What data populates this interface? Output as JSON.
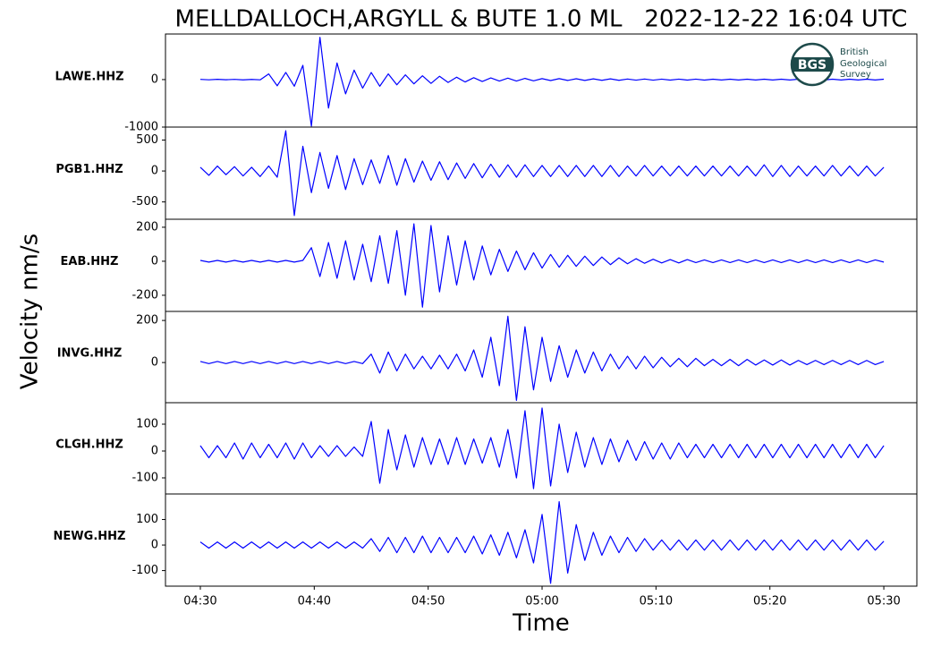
{
  "chart_data": {
    "type": "line",
    "title": "MELLDALLOCH,ARGYLL & BUTE 1.0 ML   2022-12-22 16:04 UTC",
    "y_label": "Velocity nm/s",
    "x_label": "Time",
    "logo": {
      "abbr": "BGS",
      "lines": [
        "British",
        "Geological",
        "Survey"
      ]
    },
    "xlim": [
      266.94,
      332.9
    ],
    "xticks": [
      {
        "value": 270,
        "label": "04:30"
      },
      {
        "value": 280,
        "label": "04:40"
      },
      {
        "value": 290,
        "label": "04:50"
      },
      {
        "value": 300,
        "label": "05:00"
      },
      {
        "value": 310,
        "label": "05:10"
      },
      {
        "value": 320,
        "label": "05:20"
      },
      {
        "value": 330,
        "label": "05:30"
      }
    ],
    "x": [
      270,
      270.75,
      271.5,
      272.25,
      273,
      273.75,
      274.5,
      275.25,
      276,
      276.75,
      277.5,
      278.25,
      279,
      279.75,
      280.5,
      281.25,
      282,
      282.75,
      283.5,
      284.25,
      285,
      285.75,
      286.5,
      287.25,
      288,
      288.75,
      289.5,
      290.25,
      291,
      291.75,
      292.5,
      293.25,
      294,
      294.75,
      295.5,
      296.25,
      297,
      297.75,
      298.5,
      299.25,
      300,
      300.75,
      301.5,
      302.25,
      303,
      303.75,
      304.5,
      305.25,
      306,
      306.75,
      307.5,
      308.25,
      309,
      309.75,
      310.5,
      311.25,
      312,
      312.75,
      313.5,
      314.25,
      315,
      315.75,
      316.5,
      317.25,
      318,
      318.75,
      319.5,
      320.25,
      321,
      321.75,
      322.5,
      323.25,
      324,
      324.75,
      325.5,
      326.25,
      327,
      327.75,
      328.5,
      329.25,
      330
    ],
    "series": [
      {
        "name": "LAWE.HHZ",
        "color": "#0000ff",
        "ylim": [
          -1000,
          960
        ],
        "yticks": [
          -1000,
          0
        ],
        "values": [
          5,
          -5,
          6,
          -4,
          5,
          -6,
          4,
          -5,
          120,
          -130,
          150,
          -140,
          300,
          -980,
          890,
          -600,
          350,
          -300,
          200,
          -180,
          150,
          -140,
          120,
          -110,
          100,
          -90,
          80,
          -80,
          70,
          -60,
          50,
          -50,
          40,
          -40,
          35,
          -30,
          30,
          -30,
          25,
          -25,
          20,
          -20,
          20,
          -18,
          18,
          -18,
          15,
          -15,
          15,
          -15,
          12,
          -12,
          12,
          -12,
          10,
          -10,
          10,
          -10,
          10,
          -10,
          8,
          -8,
          8,
          -8,
          8,
          -8,
          8,
          -8,
          8,
          -8,
          8,
          -8,
          8,
          -8,
          8,
          -8,
          8,
          -8,
          8,
          -8,
          8
        ]
      },
      {
        "name": "PGB1.HHZ",
        "color": "#0000ff",
        "ylim": [
          -780,
          710
        ],
        "yticks": [
          -500,
          0,
          500
        ],
        "values": [
          60,
          -70,
          80,
          -60,
          70,
          -80,
          60,
          -90,
          80,
          -100,
          650,
          -720,
          400,
          -350,
          300,
          -280,
          250,
          -300,
          200,
          -220,
          180,
          -200,
          250,
          -230,
          200,
          -180,
          160,
          -150,
          150,
          -140,
          130,
          -120,
          120,
          -110,
          110,
          -100,
          100,
          -100,
          100,
          -90,
          90,
          -90,
          90,
          -90,
          90,
          -90,
          90,
          -90,
          90,
          -90,
          80,
          -80,
          90,
          -80,
          80,
          -80,
          80,
          -80,
          80,
          -80,
          80,
          -80,
          80,
          -80,
          80,
          -80,
          100,
          -90,
          90,
          -90,
          80,
          -80,
          80,
          -80,
          90,
          -80,
          80,
          -80,
          80,
          -80,
          60
        ]
      },
      {
        "name": "EAB.HHZ",
        "color": "#0000ff",
        "ylim": [
          -295,
          247
        ],
        "yticks": [
          -200,
          0,
          200
        ],
        "values": [
          5,
          -5,
          5,
          -5,
          5,
          -5,
          5,
          -5,
          5,
          -5,
          5,
          -5,
          5,
          80,
          -90,
          110,
          -100,
          120,
          -110,
          100,
          -120,
          150,
          -130,
          180,
          -200,
          220,
          -270,
          210,
          -180,
          150,
          -140,
          120,
          -110,
          90,
          -80,
          70,
          -60,
          60,
          -50,
          50,
          -40,
          40,
          -35,
          35,
          -30,
          30,
          -25,
          25,
          -20,
          20,
          -15,
          15,
          -12,
          12,
          -10,
          10,
          -10,
          10,
          -8,
          8,
          -8,
          8,
          -8,
          8,
          -8,
          8,
          -8,
          8,
          -8,
          8,
          -8,
          8,
          -8,
          8,
          -8,
          8,
          -8,
          8,
          -8,
          8,
          -5
        ]
      },
      {
        "name": "INVG.HHZ",
        "color": "#0000ff",
        "ylim": [
          -191,
          243
        ],
        "yticks": [
          0,
          200
        ],
        "values": [
          5,
          -5,
          5,
          -5,
          5,
          -5,
          5,
          -5,
          5,
          -5,
          5,
          -5,
          5,
          -5,
          5,
          -5,
          5,
          -5,
          5,
          -5,
          40,
          -50,
          50,
          -40,
          40,
          -30,
          30,
          -30,
          35,
          -30,
          40,
          -40,
          60,
          -70,
          120,
          -110,
          220,
          -180,
          170,
          -130,
          120,
          -90,
          80,
          -70,
          60,
          -50,
          50,
          -40,
          40,
          -30,
          30,
          -30,
          30,
          -25,
          25,
          -20,
          20,
          -20,
          20,
          -15,
          15,
          -15,
          15,
          -15,
          15,
          -12,
          12,
          -12,
          12,
          -12,
          10,
          -10,
          10,
          -10,
          10,
          -10,
          10,
          -10,
          10,
          -10,
          5
        ]
      },
      {
        "name": "CLGH.HHZ",
        "color": "#0000ff",
        "ylim": [
          -160,
          180
        ],
        "yticks": [
          -100,
          0,
          100
        ],
        "values": [
          20,
          -25,
          20,
          -25,
          30,
          -30,
          30,
          -25,
          25,
          -25,
          30,
          -30,
          30,
          -25,
          20,
          -20,
          20,
          -20,
          15,
          -20,
          110,
          -120,
          80,
          -70,
          60,
          -60,
          50,
          -50,
          45,
          -50,
          50,
          -50,
          45,
          -45,
          50,
          -60,
          80,
          -100,
          150,
          -140,
          160,
          -130,
          100,
          -80,
          70,
          -60,
          50,
          -50,
          45,
          -40,
          40,
          -35,
          35,
          -30,
          30,
          -30,
          30,
          -25,
          25,
          -25,
          25,
          -25,
          25,
          -25,
          25,
          -25,
          25,
          -25,
          25,
          -25,
          25,
          -25,
          25,
          -25,
          25,
          -25,
          25,
          -25,
          25,
          -25,
          20
        ]
      },
      {
        "name": "NEWG.HHZ",
        "color": "#0000ff",
        "ylim": [
          -161,
          200
        ],
        "yticks": [
          -100,
          0,
          100
        ],
        "values": [
          12,
          -12,
          12,
          -12,
          12,
          -12,
          12,
          -12,
          12,
          -12,
          12,
          -12,
          12,
          -12,
          12,
          -12,
          12,
          -12,
          12,
          -12,
          25,
          -25,
          30,
          -30,
          30,
          -30,
          35,
          -30,
          30,
          -30,
          30,
          -30,
          35,
          -35,
          40,
          -40,
          50,
          -50,
          60,
          -70,
          120,
          -150,
          170,
          -110,
          80,
          -60,
          50,
          -40,
          35,
          -30,
          30,
          -25,
          25,
          -20,
          20,
          -20,
          20,
          -20,
          20,
          -20,
          20,
          -20,
          20,
          -20,
          20,
          -20,
          20,
          -20,
          20,
          -20,
          20,
          -20,
          20,
          -20,
          20,
          -20,
          20,
          -20,
          20,
          -20,
          15
        ]
      }
    ]
  }
}
